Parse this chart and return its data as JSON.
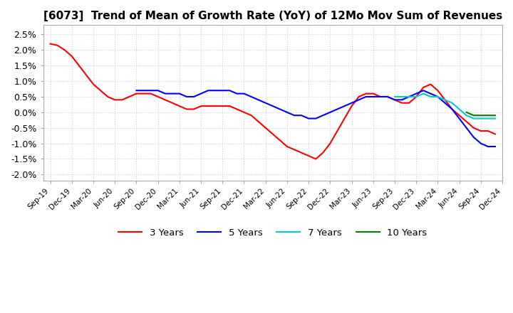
{
  "title": "[6073]  Trend of Mean of Growth Rate (YoY) of 12Mo Mov Sum of Revenues",
  "title_fontsize": 11,
  "ylim": [
    -0.022,
    0.028
  ],
  "yticks": [
    -0.02,
    -0.015,
    -0.01,
    -0.005,
    0.0,
    0.005,
    0.01,
    0.015,
    0.02,
    0.025
  ],
  "ytick_labels": [
    "-2.0%",
    "-1.5%",
    "-1.0%",
    "-0.5%",
    "0.0%",
    "0.5%",
    "1.0%",
    "1.5%",
    "2.0%",
    "2.5%"
  ],
  "background_color": "#ffffff",
  "grid_color": "#d0d0d0",
  "series": {
    "3 Years": {
      "color": "#ff0000",
      "y": [
        0.022,
        0.0215,
        0.02,
        0.018,
        0.015,
        0.012,
        0.009,
        0.007,
        0.005,
        0.004,
        0.004,
        0.005,
        0.006,
        0.006,
        0.006,
        0.005,
        0.004,
        0.003,
        0.002,
        0.001,
        0.001,
        0.002,
        0.002,
        0.002,
        0.002,
        0.002,
        0.001,
        0.0,
        -0.001,
        -0.003,
        -0.005,
        -0.007,
        -0.009,
        -0.011,
        -0.012,
        -0.013,
        -0.014,
        -0.015,
        -0.013,
        -0.01,
        -0.006,
        -0.002,
        0.002,
        0.005,
        0.006,
        0.006,
        0.005,
        0.005,
        0.004,
        0.003,
        0.003,
        0.005,
        0.008,
        0.009,
        0.007,
        0.004,
        0.001,
        -0.001,
        -0.003,
        -0.005,
        -0.006,
        -0.006,
        -0.007
      ]
    },
    "5 Years": {
      "color": "#0000ff",
      "y": [
        null,
        null,
        null,
        null,
        null,
        null,
        null,
        null,
        null,
        null,
        null,
        null,
        0.007,
        0.007,
        0.007,
        0.007,
        0.006,
        0.006,
        0.006,
        0.005,
        0.005,
        0.006,
        0.007,
        0.007,
        0.007,
        0.007,
        0.006,
        0.006,
        0.005,
        0.004,
        0.003,
        0.002,
        0.001,
        0.0,
        -0.001,
        -0.001,
        -0.002,
        -0.002,
        -0.001,
        0.0,
        0.001,
        0.002,
        0.003,
        0.004,
        0.005,
        0.005,
        0.005,
        0.005,
        0.004,
        0.004,
        0.005,
        0.006,
        0.007,
        0.006,
        0.005,
        0.003,
        0.001,
        -0.002,
        -0.005,
        -0.008,
        -0.01,
        -0.011,
        -0.011
      ]
    },
    "7 Years": {
      "color": "#00cccc",
      "y": [
        null,
        null,
        null,
        null,
        null,
        null,
        null,
        null,
        null,
        null,
        null,
        null,
        null,
        null,
        null,
        null,
        null,
        null,
        null,
        null,
        null,
        null,
        null,
        null,
        null,
        null,
        null,
        null,
        null,
        null,
        null,
        null,
        null,
        null,
        null,
        null,
        null,
        null,
        null,
        null,
        null,
        null,
        null,
        null,
        null,
        null,
        null,
        null,
        0.005,
        0.005,
        0.005,
        0.005,
        0.006,
        0.005,
        0.005,
        0.004,
        0.003,
        0.001,
        -0.001,
        -0.002,
        -0.002,
        -0.002,
        -0.002
      ]
    },
    "10 Years": {
      "color": "#008000",
      "y": [
        null,
        null,
        null,
        null,
        null,
        null,
        null,
        null,
        null,
        null,
        null,
        null,
        null,
        null,
        null,
        null,
        null,
        null,
        null,
        null,
        null,
        null,
        null,
        null,
        null,
        null,
        null,
        null,
        null,
        null,
        null,
        null,
        null,
        null,
        null,
        null,
        null,
        null,
        null,
        null,
        null,
        null,
        null,
        null,
        null,
        null,
        null,
        null,
        null,
        null,
        null,
        null,
        null,
        null,
        null,
        null,
        null,
        null,
        0.0,
        -0.001,
        -0.001,
        -0.001,
        -0.001
      ]
    }
  },
  "n_points": 63,
  "x_tick_labels": [
    "Sep-19",
    "Dec-19",
    "Mar-20",
    "Jun-20",
    "Sep-20",
    "Dec-20",
    "Mar-21",
    "Jun-21",
    "Sep-21",
    "Dec-21",
    "Mar-22",
    "Jun-22",
    "Sep-22",
    "Dec-22",
    "Mar-23",
    "Jun-23",
    "Sep-23",
    "Dec-23",
    "Mar-24",
    "Jun-24",
    "Sep-24",
    "Dec-24"
  ],
  "x_tick_positions": [
    0,
    3,
    6,
    9,
    12,
    15,
    18,
    21,
    24,
    27,
    30,
    33,
    36,
    39,
    42,
    45,
    48,
    51,
    54,
    57,
    60,
    63
  ],
  "legend": [
    "3 Years",
    "5 Years",
    "7 Years",
    "10 Years"
  ],
  "legend_colors": [
    "#ff0000",
    "#0000ff",
    "#00cccc",
    "#008000"
  ]
}
